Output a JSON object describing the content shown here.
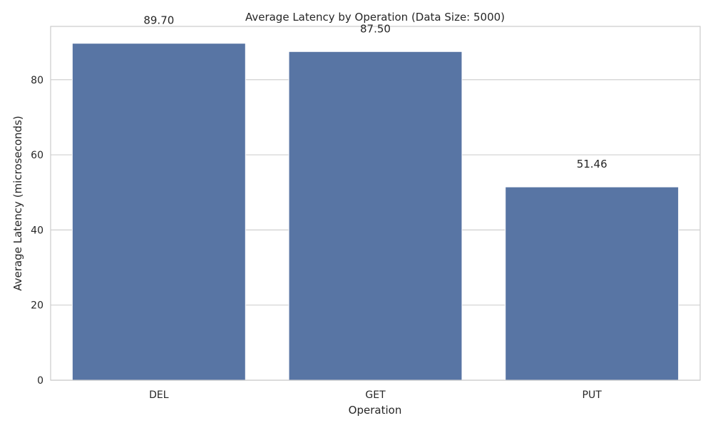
{
  "chart_data": {
    "type": "bar",
    "title": "Average Latency by Operation (Data Size: 5000)",
    "xlabel": "Operation",
    "ylabel": "Average Latency (microseconds)",
    "categories": [
      "DEL",
      "GET",
      "PUT"
    ],
    "values": [
      89.7,
      87.5,
      51.46
    ],
    "value_labels": [
      "89.70",
      "87.50",
      "51.46"
    ],
    "yticks": [
      0,
      20,
      40,
      60,
      80
    ],
    "ytick_labels": [
      "0",
      "20",
      "40",
      "60",
      "80"
    ],
    "ylim": [
      0,
      94.2
    ],
    "grid": true,
    "bar_color": "#5875a4",
    "grid_color": "#d0d0d0"
  }
}
